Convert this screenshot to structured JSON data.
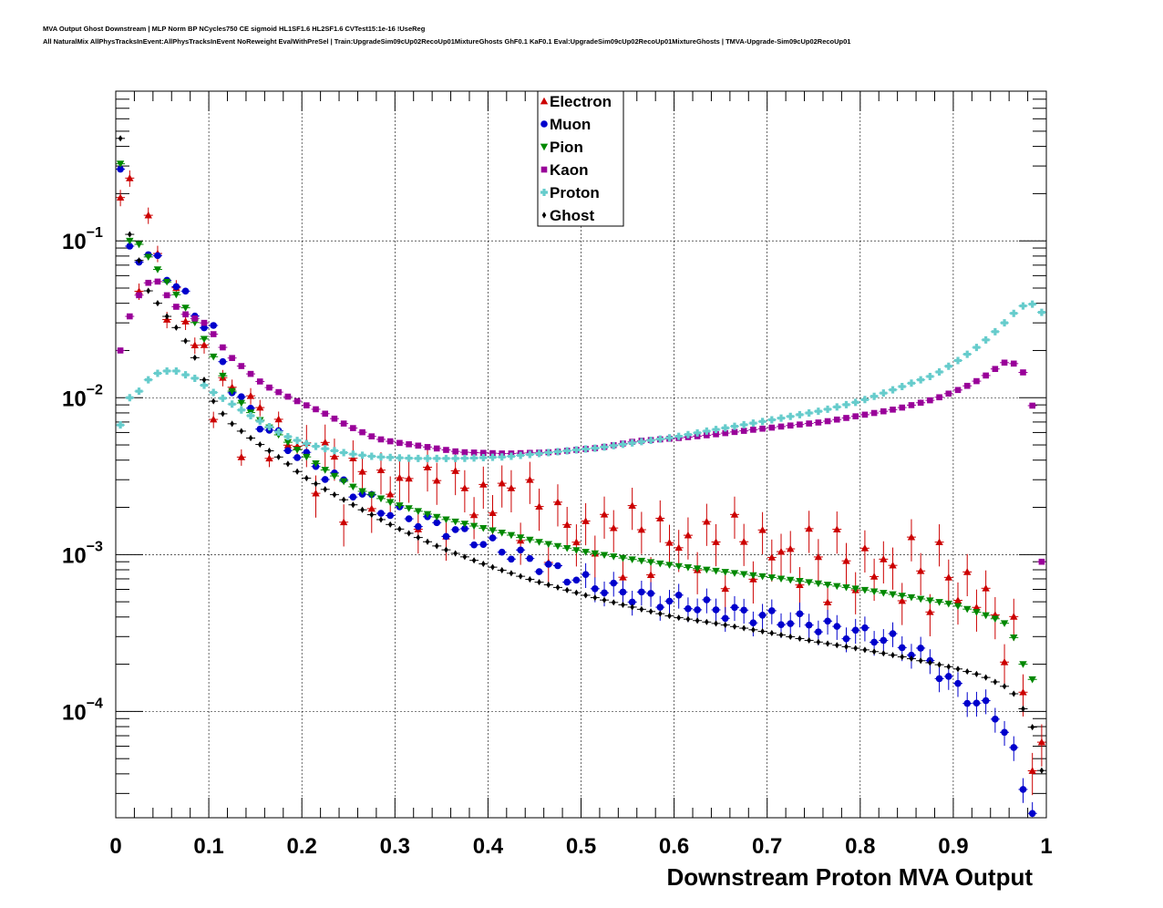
{
  "header": {
    "title_line1": "MVA Output Ghost Downstream | MLP Norm BP NCycles750 CE sigmoid HL1SF1.6 HL2SF1.6 CVTest15:1e-16 !UseReg",
    "title_line2": "All NaturalMix AllPhysTracksInEvent:AllPhysTracksInEvent NoReweight EvalWithPreSel | Train:UpgradeSim09cUp02RecoUp01MixtureGhosts GhF0.1 KaF0.1 Eval:UpgradeSim09cUp02RecoUp01MixtureGhosts | TMVA-Upgrade-Sim09cUp02RecoUp01"
  },
  "chart_data": {
    "type": "scatter",
    "xlabel": "Downstream Proton MVA Output",
    "ylabel": "",
    "xlim": [
      0,
      1
    ],
    "ylim": [
      2.1e-05,
      0.9
    ],
    "y_scale": "log",
    "grid": true,
    "legend_position": "top-center",
    "x_tick_labels": [
      "0",
      "0.1",
      "0.2",
      "0.3",
      "0.4",
      "0.5",
      "0.6",
      "0.7",
      "0.8",
      "0.9",
      "1"
    ],
    "y_tick_labels": [
      {
        "base": "10",
        "exp": "−1",
        "value": 0.1
      },
      {
        "base": "10",
        "exp": "−2",
        "value": 0.01
      },
      {
        "base": "10",
        "exp": "−3",
        "value": 0.001
      },
      {
        "base": "10",
        "exp": "−4",
        "value": 0.0001
      }
    ],
    "series": [
      {
        "name": "Electron",
        "marker": "triangle-up",
        "color": "#cc0000",
        "sparse": true,
        "err": true,
        "anchors": [
          [
            0.005,
            0.15
          ],
          [
            0.015,
            0.19
          ],
          [
            0.025,
            0.09
          ],
          [
            0.035,
            0.105
          ],
          [
            0.045,
            0.062
          ],
          [
            0.055,
            0.052
          ],
          [
            0.065,
            0.04
          ],
          [
            0.075,
            0.03
          ],
          [
            0.085,
            0.023
          ],
          [
            0.095,
            0.018
          ],
          [
            0.105,
            0.011
          ],
          [
            0.12,
            0.0095
          ],
          [
            0.14,
            0.0075
          ],
          [
            0.16,
            0.0066
          ],
          [
            0.18,
            0.0056
          ],
          [
            0.2,
            0.0045
          ],
          [
            0.22,
            0.0038
          ],
          [
            0.25,
            0.0029
          ],
          [
            0.27,
            0.0028
          ],
          [
            0.3,
            0.0028
          ],
          [
            0.33,
            0.0024
          ],
          [
            0.36,
            0.0024
          ],
          [
            0.4,
            0.0023
          ],
          [
            0.43,
            0.0023
          ],
          [
            0.46,
            0.0016
          ],
          [
            0.5,
            0.0014
          ],
          [
            0.54,
            0.0013
          ],
          [
            0.6,
            0.0012
          ],
          [
            0.64,
            0.0011
          ],
          [
            0.68,
            0.0011
          ],
          [
            0.72,
            0.001
          ],
          [
            0.76,
            0.0009
          ],
          [
            0.8,
            0.00085
          ],
          [
            0.84,
            0.0008
          ],
          [
            0.88,
            0.00075
          ],
          [
            0.9,
            0.0007
          ],
          [
            0.92,
            0.0006
          ],
          [
            0.94,
            0.00045
          ],
          [
            0.96,
            0.0003
          ],
          [
            0.97,
            0.00018
          ],
          [
            0.98,
            0.0001
          ],
          [
            0.99,
            5e-05
          ],
          [
            0.995,
            4e-05
          ]
        ]
      },
      {
        "name": "Muon",
        "marker": "circle",
        "color": "#0000cc",
        "sparse": false,
        "err": true,
        "anchors": [
          [
            0.005,
            0.26
          ],
          [
            0.015,
            0.09
          ],
          [
            0.025,
            0.082
          ],
          [
            0.045,
            0.074
          ],
          [
            0.065,
            0.052
          ],
          [
            0.085,
            0.035
          ],
          [
            0.105,
            0.026
          ],
          [
            0.12,
            0.0135
          ],
          [
            0.14,
            0.0085
          ],
          [
            0.16,
            0.0066
          ],
          [
            0.18,
            0.0052
          ],
          [
            0.2,
            0.0042
          ],
          [
            0.23,
            0.0032
          ],
          [
            0.26,
            0.0025
          ],
          [
            0.29,
            0.0019
          ],
          [
            0.32,
            0.0017
          ],
          [
            0.35,
            0.0015
          ],
          [
            0.38,
            0.0013
          ],
          [
            0.42,
            0.00105
          ],
          [
            0.46,
            0.00085
          ],
          [
            0.5,
            0.00068
          ],
          [
            0.54,
            0.00058
          ],
          [
            0.58,
            0.00052
          ],
          [
            0.62,
            0.00048
          ],
          [
            0.66,
            0.00043
          ],
          [
            0.7,
            0.0004
          ],
          [
            0.74,
            0.00037
          ],
          [
            0.78,
            0.00033
          ],
          [
            0.82,
            0.0003
          ],
          [
            0.85,
            0.00026
          ],
          [
            0.87,
            0.00022
          ],
          [
            0.89,
            0.00017
          ],
          [
            0.91,
            0.00013
          ],
          [
            0.93,
            0.00011
          ],
          [
            0.95,
            9e-05
          ],
          [
            0.96,
            7e-05
          ],
          [
            0.97,
            4e-05
          ],
          [
            0.98,
            2.5e-05
          ]
        ]
      },
      {
        "name": "Pion",
        "marker": "triangle-down",
        "color": "#008800",
        "sparse": false,
        "err": false,
        "anchors": [
          [
            0.005,
            0.31
          ],
          [
            0.015,
            0.1
          ],
          [
            0.025,
            0.095
          ],
          [
            0.04,
            0.072
          ],
          [
            0.06,
            0.05
          ],
          [
            0.08,
            0.034
          ],
          [
            0.1,
            0.021
          ],
          [
            0.12,
            0.012
          ],
          [
            0.14,
            0.0085
          ],
          [
            0.16,
            0.0068
          ],
          [
            0.18,
            0.0055
          ],
          [
            0.2,
            0.0044
          ],
          [
            0.23,
            0.0033
          ],
          [
            0.26,
            0.0026
          ],
          [
            0.3,
            0.0021
          ],
          [
            0.35,
            0.0017
          ],
          [
            0.4,
            0.00145
          ],
          [
            0.45,
            0.00122
          ],
          [
            0.5,
            0.00105
          ],
          [
            0.55,
            0.00094
          ],
          [
            0.6,
            0.00085
          ],
          [
            0.65,
            0.00078
          ],
          [
            0.7,
            0.00072
          ],
          [
            0.75,
            0.00066
          ],
          [
            0.8,
            0.0006
          ],
          [
            0.85,
            0.00054
          ],
          [
            0.9,
            0.00048
          ],
          [
            0.93,
            0.00042
          ],
          [
            0.95,
            0.00038
          ],
          [
            0.96,
            0.00035
          ],
          [
            0.97,
            0.00025
          ],
          [
            0.98,
            0.00016
          ]
        ]
      },
      {
        "name": "Kaon",
        "marker": "square",
        "color": "#990099",
        "sparse": false,
        "err": false,
        "anchors": [
          [
            0.005,
            0.02
          ],
          [
            0.015,
            0.033
          ],
          [
            0.025,
            0.045
          ],
          [
            0.035,
            0.054
          ],
          [
            0.045,
            0.055
          ],
          [
            0.055,
            0.045
          ],
          [
            0.065,
            0.038
          ],
          [
            0.075,
            0.034
          ],
          [
            0.085,
            0.032
          ],
          [
            0.095,
            0.03
          ],
          [
            0.1,
            0.028
          ],
          [
            0.12,
            0.019
          ],
          [
            0.14,
            0.015
          ],
          [
            0.16,
            0.012
          ],
          [
            0.18,
            0.0105
          ],
          [
            0.2,
            0.0092
          ],
          [
            0.22,
            0.0082
          ],
          [
            0.25,
            0.0066
          ],
          [
            0.28,
            0.0055
          ],
          [
            0.3,
            0.0052
          ],
          [
            0.33,
            0.0049
          ],
          [
            0.37,
            0.0045
          ],
          [
            0.42,
            0.0044
          ],
          [
            0.47,
            0.0045
          ],
          [
            0.52,
            0.0048
          ],
          [
            0.56,
            0.0053
          ],
          [
            0.6,
            0.0055
          ],
          [
            0.64,
            0.0058
          ],
          [
            0.68,
            0.0062
          ],
          [
            0.72,
            0.0066
          ],
          [
            0.76,
            0.007
          ],
          [
            0.8,
            0.0077
          ],
          [
            0.84,
            0.0085
          ],
          [
            0.88,
            0.0098
          ],
          [
            0.91,
            0.0115
          ],
          [
            0.93,
            0.0132
          ],
          [
            0.95,
            0.016
          ],
          [
            0.96,
            0.0175
          ],
          [
            0.965,
            0.0165
          ],
          [
            0.975,
            0.0145
          ],
          [
            0.985,
            0.0089
          ],
          [
            0.995,
            0.0009
          ]
        ]
      },
      {
        "name": "Proton",
        "marker": "cross",
        "color": "#66cccc",
        "sparse": false,
        "err": false,
        "anchors": [
          [
            0.005,
            0.0067
          ],
          [
            0.015,
            0.01
          ],
          [
            0.025,
            0.011
          ],
          [
            0.035,
            0.013
          ],
          [
            0.045,
            0.0143
          ],
          [
            0.055,
            0.0148
          ],
          [
            0.065,
            0.0148
          ],
          [
            0.075,
            0.014
          ],
          [
            0.085,
            0.0133
          ],
          [
            0.095,
            0.012
          ],
          [
            0.105,
            0.0108
          ],
          [
            0.12,
            0.0095
          ],
          [
            0.14,
            0.008
          ],
          [
            0.16,
            0.0068
          ],
          [
            0.18,
            0.0058
          ],
          [
            0.2,
            0.0052
          ],
          [
            0.22,
            0.0048
          ],
          [
            0.25,
            0.0044
          ],
          [
            0.28,
            0.0042
          ],
          [
            0.32,
            0.0041
          ],
          [
            0.37,
            0.0041
          ],
          [
            0.42,
            0.0042
          ],
          [
            0.47,
            0.0045
          ],
          [
            0.52,
            0.0048
          ],
          [
            0.56,
            0.0052
          ],
          [
            0.6,
            0.0056
          ],
          [
            0.64,
            0.0062
          ],
          [
            0.68,
            0.0068
          ],
          [
            0.72,
            0.0075
          ],
          [
            0.76,
            0.0083
          ],
          [
            0.8,
            0.0095
          ],
          [
            0.84,
            0.0115
          ],
          [
            0.88,
            0.014
          ],
          [
            0.91,
            0.018
          ],
          [
            0.93,
            0.022
          ],
          [
            0.95,
            0.028
          ],
          [
            0.97,
            0.037
          ],
          [
            0.98,
            0.04
          ],
          [
            0.99,
            0.039
          ],
          [
            0.995,
            0.035
          ]
        ]
      },
      {
        "name": "Ghost",
        "marker": "diamond",
        "color": "#000000",
        "sparse": false,
        "err": false,
        "anchors": [
          [
            0.005,
            0.45
          ],
          [
            0.015,
            0.11
          ],
          [
            0.025,
            0.075
          ],
          [
            0.035,
            0.048
          ],
          [
            0.045,
            0.04
          ],
          [
            0.055,
            0.033
          ],
          [
            0.065,
            0.028
          ],
          [
            0.075,
            0.023
          ],
          [
            0.085,
            0.018
          ],
          [
            0.095,
            0.013
          ],
          [
            0.105,
            0.0095
          ],
          [
            0.12,
            0.0072
          ],
          [
            0.14,
            0.0058
          ],
          [
            0.16,
            0.0048
          ],
          [
            0.18,
            0.004
          ],
          [
            0.2,
            0.0032
          ],
          [
            0.23,
            0.0025
          ],
          [
            0.26,
            0.002
          ],
          [
            0.3,
            0.0015
          ],
          [
            0.35,
            0.0011
          ],
          [
            0.4,
            0.00085
          ],
          [
            0.45,
            0.00068
          ],
          [
            0.5,
            0.00056
          ],
          [
            0.55,
            0.00047
          ],
          [
            0.6,
            0.0004
          ],
          [
            0.65,
            0.00036
          ],
          [
            0.7,
            0.00032
          ],
          [
            0.75,
            0.00028
          ],
          [
            0.8,
            0.00025
          ],
          [
            0.85,
            0.00022
          ],
          [
            0.9,
            0.00019
          ],
          [
            0.93,
            0.00017
          ],
          [
            0.96,
            0.00014
          ],
          [
            0.97,
            0.00012
          ],
          [
            0.98,
            9e-05
          ],
          [
            0.99,
            7e-05
          ],
          [
            0.995,
            4.2e-05
          ]
        ]
      }
    ]
  }
}
